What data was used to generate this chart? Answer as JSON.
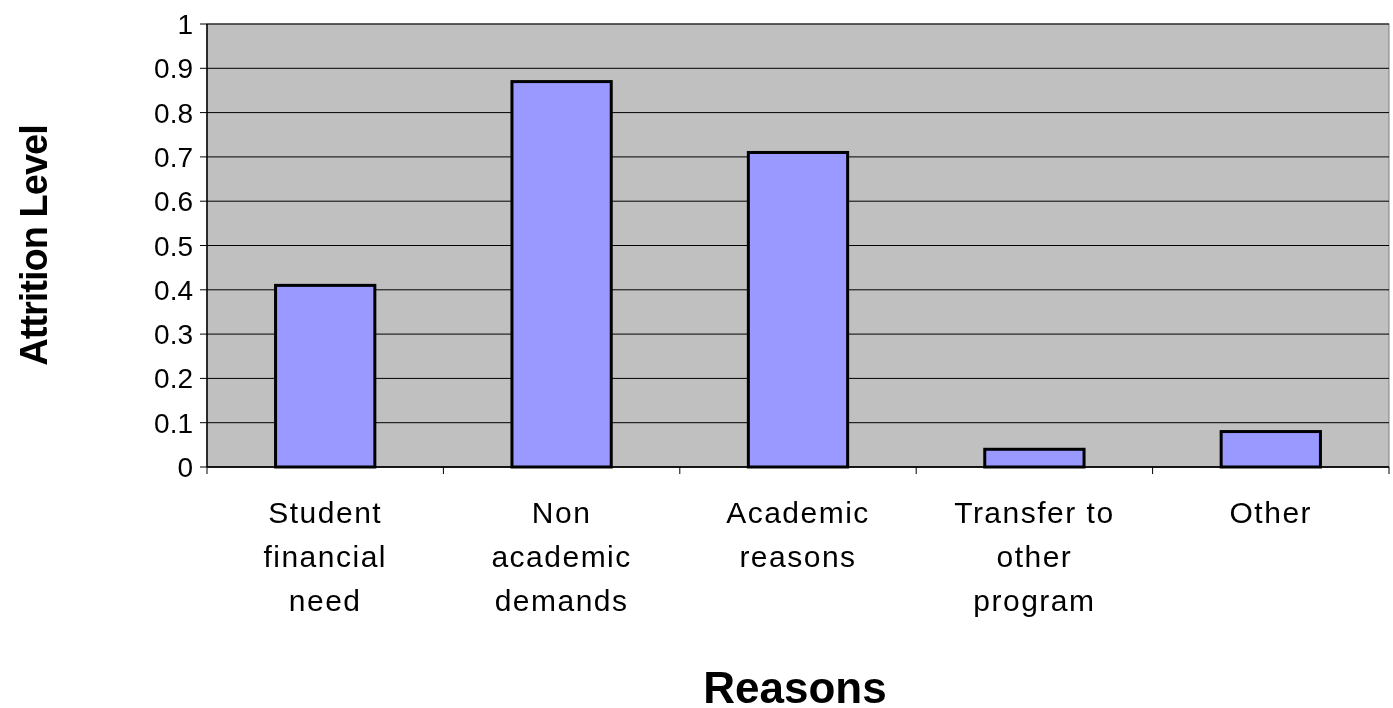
{
  "chart_data": {
    "type": "bar",
    "xlabel": "Reasons",
    "ylabel": "Attrition Level",
    "categories": [
      "Student financial need",
      "Non academic demands",
      "Academic reasons",
      "Transfer to other program",
      "Other"
    ],
    "values": [
      0.41,
      0.87,
      0.71,
      0.04,
      0.08
    ],
    "color": "#9999ff",
    "ylim": [
      0,
      1
    ],
    "yticks": [
      0,
      0.1,
      0.2,
      0.3,
      0.4,
      0.5,
      0.6,
      0.7,
      0.8,
      0.9,
      1
    ],
    "grid": "y"
  }
}
